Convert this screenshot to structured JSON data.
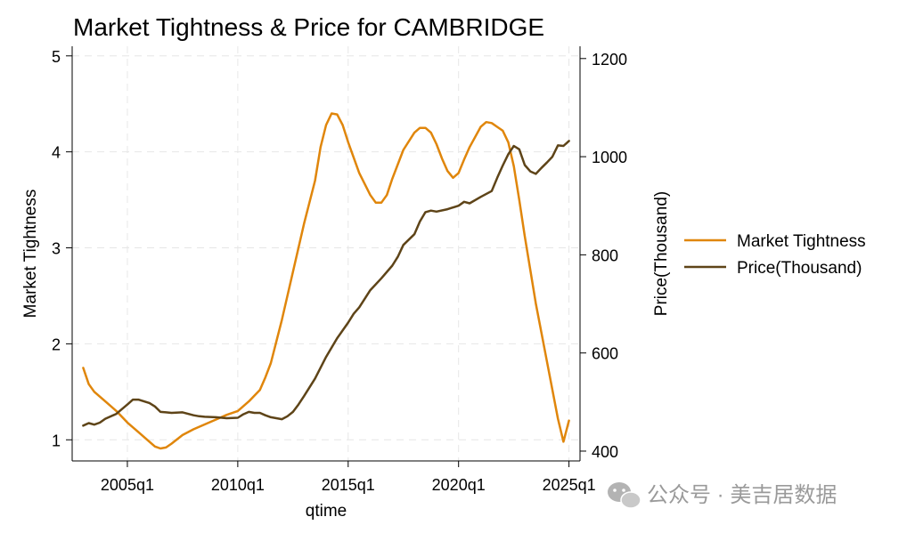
{
  "chart_data": {
    "type": "line",
    "title": "Market Tightness & Price for CAMBRIDGE",
    "xlabel": "qtime",
    "ylabel_left": "Market Tightness",
    "ylabel_right": "Price(Thousand)",
    "x_ticks": [
      "2005q1",
      "2010q1",
      "2015q1",
      "2020q1",
      "2025q1"
    ],
    "x_tick_values": [
      2005,
      2010,
      2015,
      2020,
      2025
    ],
    "xlim": [
      2002.5,
      2025.5
    ],
    "y_left_ticks": [
      "1",
      "2",
      "3",
      "4",
      "5"
    ],
    "y_left_tick_values": [
      1,
      2,
      3,
      4,
      5
    ],
    "ylim_left": [
      0.78,
      5.1
    ],
    "y_right_ticks": [
      "400",
      "600",
      "800",
      "1000",
      "1200"
    ],
    "y_right_tick_values": [
      400,
      600,
      800,
      1000,
      1200
    ],
    "ylim_right": [
      380,
      1225
    ],
    "grid": true,
    "legend_position": "right",
    "series": [
      {
        "name": "Market Tightness",
        "axis": "left",
        "color": "#e0860b",
        "x": [
          2003.0,
          2003.25,
          2003.5,
          2003.75,
          2004.0,
          2004.5,
          2005.0,
          2005.5,
          2006.0,
          2006.25,
          2006.5,
          2006.75,
          2007.0,
          2007.5,
          2008.0,
          2008.5,
          2009.0,
          2009.5,
          2010.0,
          2010.5,
          2011.0,
          2011.25,
          2011.5,
          2012.0,
          2012.5,
          2013.0,
          2013.5,
          2013.75,
          2014.0,
          2014.25,
          2014.5,
          2014.75,
          2015.0,
          2015.5,
          2016.0,
          2016.25,
          2016.5,
          2016.75,
          2017.0,
          2017.5,
          2018.0,
          2018.25,
          2018.5,
          2018.75,
          2019.0,
          2019.25,
          2019.5,
          2019.75,
          2020.0,
          2020.25,
          2020.5,
          2021.0,
          2021.25,
          2021.5,
          2021.75,
          2022.0,
          2022.25,
          2022.5,
          2022.75,
          2023.0,
          2023.5,
          2024.0,
          2024.5,
          2024.75,
          2025.0
        ],
        "values": [
          1.75,
          1.58,
          1.5,
          1.45,
          1.4,
          1.3,
          1.18,
          1.08,
          0.98,
          0.93,
          0.91,
          0.92,
          0.96,
          1.05,
          1.11,
          1.16,
          1.21,
          1.26,
          1.3,
          1.4,
          1.52,
          1.65,
          1.8,
          2.25,
          2.75,
          3.25,
          3.7,
          4.05,
          4.28,
          4.4,
          4.39,
          4.28,
          4.1,
          3.78,
          3.55,
          3.47,
          3.47,
          3.55,
          3.72,
          4.02,
          4.2,
          4.25,
          4.25,
          4.2,
          4.08,
          3.93,
          3.8,
          3.73,
          3.78,
          3.92,
          4.05,
          4.26,
          4.31,
          4.3,
          4.26,
          4.22,
          4.1,
          3.85,
          3.5,
          3.12,
          2.42,
          1.82,
          1.22,
          0.98,
          1.2
        ]
      },
      {
        "name": "Price(Thousand)",
        "axis": "right",
        "color": "#5e4418",
        "x": [
          2003.0,
          2003.25,
          2003.5,
          2003.75,
          2004.0,
          2004.5,
          2005.0,
          2005.25,
          2005.5,
          2006.0,
          2006.25,
          2006.5,
          2006.75,
          2007.0,
          2007.5,
          2008.0,
          2008.25,
          2008.5,
          2009.0,
          2009.5,
          2010.0,
          2010.25,
          2010.5,
          2010.75,
          2011.0,
          2011.25,
          2011.5,
          2012.0,
          2012.25,
          2012.5,
          2012.75,
          2013.0,
          2013.5,
          2014.0,
          2014.5,
          2015.0,
          2015.25,
          2015.5,
          2016.0,
          2016.5,
          2017.0,
          2017.25,
          2017.5,
          2018.0,
          2018.25,
          2018.5,
          2018.75,
          2019.0,
          2019.5,
          2020.0,
          2020.25,
          2020.5,
          2021.0,
          2021.5,
          2021.75,
          2022.0,
          2022.25,
          2022.5,
          2022.75,
          2023.0,
          2023.25,
          2023.5,
          2023.75,
          2024.0,
          2024.25,
          2024.5,
          2024.75,
          2025.0
        ],
        "values": [
          452,
          457,
          454,
          458,
          466,
          476,
          495,
          505,
          505,
          498,
          491,
          480,
          479,
          478,
          479,
          473,
          471,
          470,
          469,
          467,
          468,
          475,
          480,
          478,
          478,
          473,
          469,
          465,
          471,
          480,
          495,
          512,
          548,
          592,
          630,
          662,
          680,
          693,
          728,
          752,
          778,
          796,
          820,
          842,
          868,
          887,
          890,
          888,
          893,
          900,
          908,
          905,
          918,
          930,
          957,
          982,
          1005,
          1022,
          1015,
          983,
          970,
          965,
          977,
          988,
          1000,
          1023,
          1022,
          1032
        ]
      }
    ]
  },
  "watermark": {
    "icon": "wechat-icon",
    "text": "公众号 · 美吉居数据"
  }
}
